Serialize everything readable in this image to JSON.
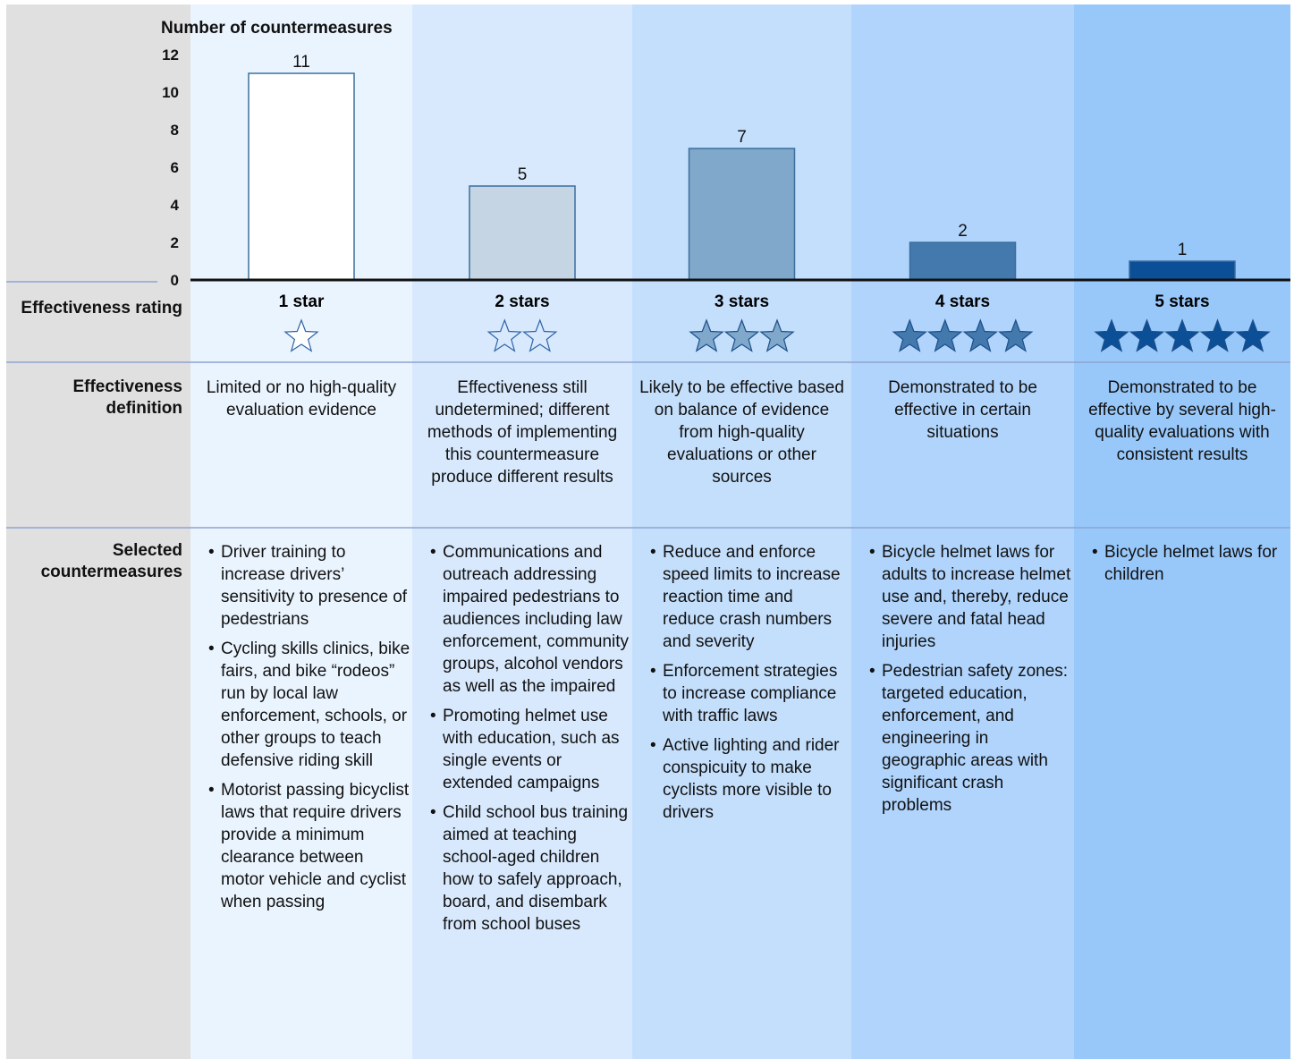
{
  "chart_data": {
    "type": "bar",
    "title": "Number of countermeasures",
    "categories": [
      "1 star",
      "2 stars",
      "3 stars",
      "4 stars",
      "5 stars"
    ],
    "values": [
      11,
      5,
      7,
      2,
      1
    ],
    "colors": [
      "#ffffff",
      "#c5d5e4",
      "#80a8ca",
      "#4479ad",
      "#0b4f96"
    ],
    "ylim": [
      0,
      12
    ],
    "yticks": [
      0,
      2,
      4,
      6,
      8,
      10,
      12
    ]
  },
  "row_labels": {
    "rating": "Effectiveness rating",
    "definition": "Effectiveness definition",
    "countermeasures": "Selected countermeasures"
  },
  "columns": [
    {
      "definition": "Limited or no high-quality evaluation evidence",
      "countermeasures": [
        "Driver training to increase drivers’ sensitivity to presence of pedestrians",
        "Cycling skills clinics, bike fairs, and bike “rodeos” run by local law enforcement, schools, or other groups to teach defensive riding skill",
        "Motorist passing bicyclist laws that require drivers provide a minimum clearance between motor vehicle and cyclist when passing"
      ]
    },
    {
      "definition": "Effectiveness still undetermined; different methods of implementing this countermeasure produce different results",
      "countermeasures": [
        "Communications and outreach addressing impaired pedestrians to audiences including law enforcement, community groups, alcohol vendors as well as the impaired",
        "Promoting helmet use with education, such as single events or extended campaigns",
        "Child school bus training aimed at teaching school-aged children how to safely approach, board, and disembark from school buses"
      ]
    },
    {
      "definition": "Likely to be effective based on balance of evidence from high-quality evaluations or other sources",
      "countermeasures": [
        "Reduce and enforce speed limits to increase reaction time and reduce crash numbers and severity",
        "Enforcement strategies to increase compliance with traffic laws",
        "Active lighting and rider conspicuity to make cyclists more visible to drivers"
      ]
    },
    {
      "definition": "Demonstrated to be effective in certain situations",
      "countermeasures": [
        "Bicycle helmet laws for adults to increase helmet use and, thereby, reduce severe and fatal head injuries",
        "Pedestrian safety zones: targeted education, enforcement, and engineering in geographic areas with significant crash problems"
      ]
    },
    {
      "definition": "Demonstrated to be effective by several high-quality evaluations with consistent results",
      "countermeasures": [
        "Bicycle helmet laws for children"
      ]
    }
  ]
}
